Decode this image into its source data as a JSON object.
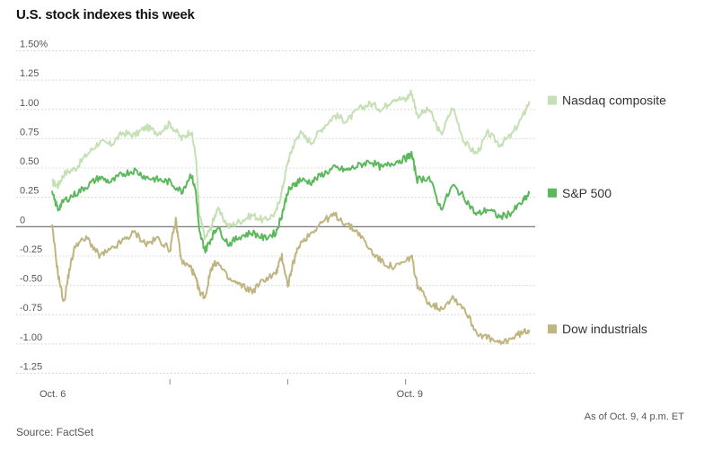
{
  "chart_data": {
    "type": "line",
    "title": "U.S. stock indexes this week",
    "xlabel": "",
    "ylabel": "",
    "ylim": [
      -1.3,
      1.55
    ],
    "yticks": [
      "1.50%",
      "1.25",
      "1.00",
      "0.75",
      "0.50",
      "0.25",
      "0",
      "-0.25",
      "-0.50",
      "-0.75",
      "-1.00",
      "-1.25"
    ],
    "ytick_values": [
      1.5,
      1.25,
      1.0,
      0.75,
      0.5,
      0.25,
      0,
      -0.25,
      -0.5,
      -0.75,
      -1.0,
      -1.25
    ],
    "xticks": [
      "Oct. 6",
      "Oct. 9"
    ],
    "xtick_positions": [
      0,
      3
    ],
    "xlim": [
      0,
      4.1
    ],
    "day_dividers": [
      1,
      2,
      3
    ],
    "series": [
      {
        "name": "Nasdaq composite",
        "color": "#c5e0b4",
        "x": [
          0,
          0.05,
          0.1,
          0.2,
          0.3,
          0.4,
          0.5,
          0.6,
          0.7,
          0.8,
          0.9,
          1.0,
          1.1,
          1.18,
          1.22,
          1.25,
          1.3,
          1.35,
          1.4,
          1.5,
          1.6,
          1.7,
          1.8,
          1.9,
          1.95,
          2.0,
          2.05,
          2.1,
          2.2,
          2.3,
          2.4,
          2.5,
          2.6,
          2.7,
          2.8,
          2.9,
          3.0,
          3.05,
          3.1,
          3.2,
          3.3,
          3.4,
          3.5,
          3.6,
          3.7,
          3.8,
          3.9,
          4.0,
          4.05
        ],
        "values": [
          0.38,
          0.35,
          0.45,
          0.5,
          0.62,
          0.72,
          0.7,
          0.8,
          0.78,
          0.85,
          0.8,
          0.88,
          0.75,
          0.82,
          0.6,
          0.1,
          -0.1,
          0.0,
          0.15,
          0.0,
          0.05,
          0.1,
          0.05,
          0.12,
          0.3,
          0.55,
          0.7,
          0.8,
          0.72,
          0.85,
          0.95,
          0.9,
          1.0,
          1.05,
          1.0,
          1.1,
          1.08,
          1.15,
          0.95,
          1.0,
          0.78,
          1.02,
          0.72,
          0.62,
          0.8,
          0.7,
          0.78,
          0.95,
          1.07
        ]
      },
      {
        "name": "S&P 500",
        "color": "#5cb85c",
        "x": [
          0,
          0.05,
          0.1,
          0.2,
          0.3,
          0.4,
          0.5,
          0.6,
          0.7,
          0.8,
          0.9,
          1.0,
          1.1,
          1.18,
          1.22,
          1.25,
          1.3,
          1.35,
          1.4,
          1.5,
          1.6,
          1.7,
          1.8,
          1.9,
          1.95,
          2.0,
          2.05,
          2.1,
          2.2,
          2.3,
          2.4,
          2.5,
          2.6,
          2.7,
          2.8,
          2.9,
          3.0,
          3.05,
          3.1,
          3.2,
          3.3,
          3.4,
          3.5,
          3.6,
          3.7,
          3.8,
          3.9,
          4.0,
          4.05
        ],
        "values": [
          0.28,
          0.15,
          0.22,
          0.28,
          0.35,
          0.42,
          0.38,
          0.45,
          0.48,
          0.42,
          0.4,
          0.38,
          0.3,
          0.45,
          0.3,
          -0.05,
          -0.2,
          -0.1,
          0.0,
          -0.15,
          -0.08,
          -0.05,
          -0.1,
          -0.05,
          0.1,
          0.3,
          0.35,
          0.4,
          0.38,
          0.45,
          0.5,
          0.48,
          0.52,
          0.56,
          0.5,
          0.55,
          0.58,
          0.62,
          0.4,
          0.42,
          0.15,
          0.35,
          0.25,
          0.1,
          0.15,
          0.08,
          0.12,
          0.22,
          0.28
        ]
      },
      {
        "name": "Dow industrials",
        "color": "#bfb581",
        "x": [
          0,
          0.05,
          0.1,
          0.15,
          0.2,
          0.3,
          0.4,
          0.5,
          0.6,
          0.7,
          0.8,
          0.9,
          1.0,
          1.05,
          1.1,
          1.18,
          1.22,
          1.25,
          1.3,
          1.35,
          1.4,
          1.5,
          1.6,
          1.7,
          1.8,
          1.9,
          1.95,
          2.0,
          2.05,
          2.1,
          2.2,
          2.3,
          2.4,
          2.5,
          2.6,
          2.7,
          2.8,
          2.9,
          3.0,
          3.05,
          3.1,
          3.2,
          3.3,
          3.4,
          3.5,
          3.6,
          3.7,
          3.8,
          3.9,
          4.0,
          4.05
        ],
        "values": [
          0.0,
          -0.4,
          -0.65,
          -0.35,
          -0.15,
          -0.1,
          -0.25,
          -0.2,
          -0.12,
          -0.05,
          -0.15,
          -0.1,
          -0.2,
          0.05,
          -0.3,
          -0.35,
          -0.45,
          -0.55,
          -0.6,
          -0.35,
          -0.3,
          -0.45,
          -0.5,
          -0.55,
          -0.45,
          -0.4,
          -0.25,
          -0.5,
          -0.3,
          -0.15,
          -0.05,
          0.05,
          0.1,
          0.02,
          -0.05,
          -0.2,
          -0.3,
          -0.35,
          -0.3,
          -0.25,
          -0.5,
          -0.65,
          -0.7,
          -0.6,
          -0.7,
          -0.9,
          -0.95,
          -1.0,
          -0.95,
          -0.9,
          -0.88
        ]
      }
    ],
    "legend_placement": "right"
  },
  "source_label": "Source: FactSet",
  "asof_label": "As of Oct. 9, 4 p.m. ET"
}
